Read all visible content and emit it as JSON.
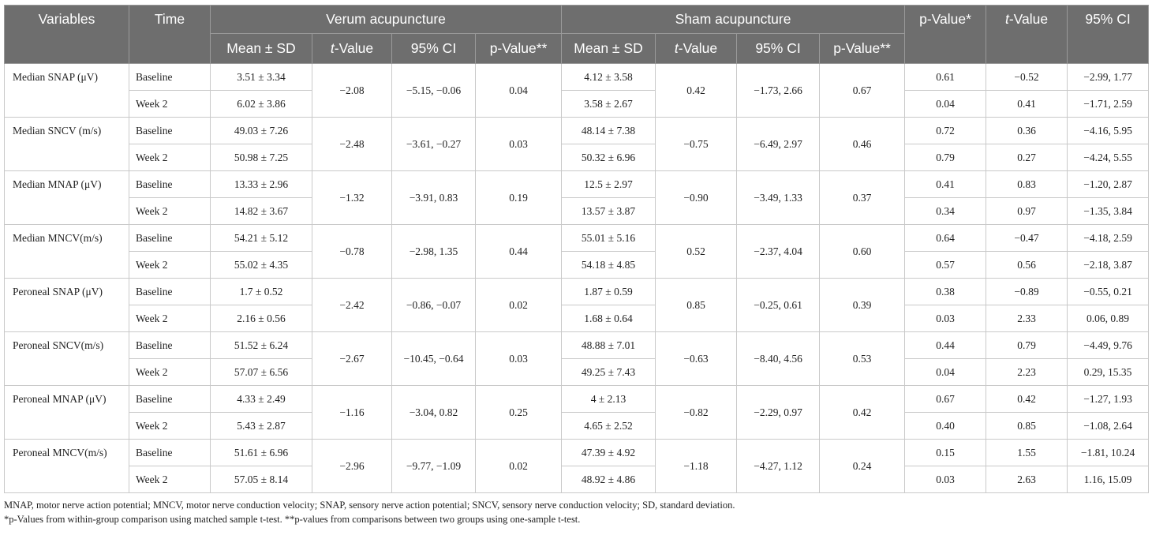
{
  "headers": {
    "variables": "Variables",
    "time": "Time",
    "verum": "Verum acupuncture",
    "sham": "Sham acupuncture",
    "p_star": "p-Value*",
    "t_value_prefix": "t",
    "t_value_suffix": "-Value",
    "ci": "95% CI",
    "mean_sd": "Mean ± SD",
    "p_2star": "p-Value**"
  },
  "rows": [
    {
      "variable": "Median SNAP (μV)",
      "baseline": {
        "time": "Baseline",
        "verum_mean": "3.51 ± 3.34",
        "sham_mean": "4.12 ± 3.58",
        "p": "0.61",
        "t": "−0.52",
        "ci": "−2.99, 1.77"
      },
      "week2": {
        "time": "Week 2",
        "verum_mean": "6.02 ± 3.86",
        "sham_mean": "3.58 ± 2.67",
        "p": "0.04",
        "t": "0.41",
        "ci": "−1.71, 2.59"
      },
      "verum_t": "−2.08",
      "verum_ci": "−5.15, −0.06",
      "verum_p": "0.04",
      "sham_t": "0.42",
      "sham_ci": "−1.73, 2.66",
      "sham_p": "0.67"
    },
    {
      "variable": "Median SNCV (m/s)",
      "baseline": {
        "time": "Baseline",
        "verum_mean": "49.03 ± 7.26",
        "sham_mean": "48.14 ± 7.38",
        "p": "0.72",
        "t": "0.36",
        "ci": "−4.16, 5.95"
      },
      "week2": {
        "time": "Week 2",
        "verum_mean": "50.98 ± 7.25",
        "sham_mean": "50.32 ± 6.96",
        "p": "0.79",
        "t": "0.27",
        "ci": "−4.24, 5.55"
      },
      "verum_t": "−2.48",
      "verum_ci": "−3.61, −0.27",
      "verum_p": "0.03",
      "sham_t": "−0.75",
      "sham_ci": "−6.49, 2.97",
      "sham_p": "0.46"
    },
    {
      "variable": "Median MNAP (μV)",
      "baseline": {
        "time": "Baseline",
        "verum_mean": "13.33 ± 2.96",
        "sham_mean": "12.5 ± 2.97",
        "p": "0.41",
        "t": "0.83",
        "ci": "−1.20, 2.87"
      },
      "week2": {
        "time": "Week 2",
        "verum_mean": "14.82 ± 3.67",
        "sham_mean": "13.57 ± 3.87",
        "p": "0.34",
        "t": "0.97",
        "ci": "−1.35, 3.84"
      },
      "verum_t": "−1.32",
      "verum_ci": "−3.91, 0.83",
      "verum_p": "0.19",
      "sham_t": "−0.90",
      "sham_ci": "−3.49, 1.33",
      "sham_p": "0.37"
    },
    {
      "variable": "Median MNCV(m/s)",
      "baseline": {
        "time": "Baseline",
        "verum_mean": "54.21 ± 5.12",
        "sham_mean": "55.01 ± 5.16",
        "p": "0.64",
        "t": "−0.47",
        "ci": "−4.18, 2.59"
      },
      "week2": {
        "time": "Week 2",
        "verum_mean": "55.02 ± 4.35",
        "sham_mean": "54.18 ± 4.85",
        "p": "0.57",
        "t": "0.56",
        "ci": "−2.18, 3.87"
      },
      "verum_t": "−0.78",
      "verum_ci": "−2.98, 1.35",
      "verum_p": "0.44",
      "sham_t": "0.52",
      "sham_ci": "−2.37, 4.04",
      "sham_p": "0.60"
    },
    {
      "variable": "Peroneal SNAP (μV)",
      "baseline": {
        "time": "Baseline",
        "verum_mean": "1.7 ± 0.52",
        "sham_mean": "1.87 ± 0.59",
        "p": "0.38",
        "t": "−0.89",
        "ci": "−0.55, 0.21"
      },
      "week2": {
        "time": "Week 2",
        "verum_mean": "2.16 ± 0.56",
        "sham_mean": "1.68 ± 0.64",
        "p": "0.03",
        "t": "2.33",
        "ci": "0.06, 0.89"
      },
      "verum_t": "−2.42",
      "verum_ci": "−0.86, −0.07",
      "verum_p": "0.02",
      "sham_t": "0.85",
      "sham_ci": "−0.25, 0.61",
      "sham_p": "0.39"
    },
    {
      "variable": "Peroneal SNCV(m/s)",
      "baseline": {
        "time": "Baseline",
        "verum_mean": "51.52 ± 6.24",
        "sham_mean": "48.88 ± 7.01",
        "p": "0.44",
        "t": "0.79",
        "ci": "−4.49, 9.76"
      },
      "week2": {
        "time": "Week 2",
        "verum_mean": "57.07 ± 6.56",
        "sham_mean": "49.25 ± 7.43",
        "p": "0.04",
        "t": "2.23",
        "ci": "0.29, 15.35"
      },
      "verum_t": "−2.67",
      "verum_ci": "−10.45, −0.64",
      "verum_p": "0.03",
      "sham_t": "−0.63",
      "sham_ci": "−8.40, 4.56",
      "sham_p": "0.53"
    },
    {
      "variable": "Peroneal MNAP (μV)",
      "baseline": {
        "time": "Baseline",
        "verum_mean": "4.33 ± 2.49",
        "sham_mean": "4 ± 2.13",
        "p": "0.67",
        "t": "0.42",
        "ci": "−1.27, 1.93"
      },
      "week2": {
        "time": "Week 2",
        "verum_mean": "5.43 ± 2.87",
        "sham_mean": "4.65 ± 2.52",
        "p": "0.40",
        "t": "0.85",
        "ci": "−1.08, 2.64"
      },
      "verum_t": "−1.16",
      "verum_ci": "−3.04, 0.82",
      "verum_p": "0.25",
      "sham_t": "−0.82",
      "sham_ci": "−2.29, 0.97",
      "sham_p": "0.42"
    },
    {
      "variable": "Peroneal MNCV(m/s)",
      "baseline": {
        "time": "Baseline",
        "verum_mean": "51.61 ± 6.96",
        "sham_mean": "47.39 ± 4.92",
        "p": "0.15",
        "t": "1.55",
        "ci": "−1.81, 10.24"
      },
      "week2": {
        "time": "Week 2",
        "verum_mean": "57.05 ± 8.14",
        "sham_mean": "48.92 ± 4.86",
        "p": "0.03",
        "t": "2.63",
        "ci": "1.16, 15.09"
      },
      "verum_t": "−2.96",
      "verum_ci": "−9.77, −1.09",
      "verum_p": "0.02",
      "sham_t": "−1.18",
      "sham_ci": "−4.27, 1.12",
      "sham_p": "0.24"
    }
  ],
  "footnotes": {
    "abbreviations": "MNAP, motor nerve action potential; MNCV, motor nerve conduction velocity; SNAP, sensory nerve action potential; SNCV, sensory nerve conduction velocity; SD, standard deviation.",
    "p_notes": "*p-Values from within-group comparison using matched sample t-test. **p-values from comparisons between two groups using one-sample t-test."
  },
  "colors": {
    "header_bg": "#6e6e6e",
    "header_text": "#ffffff",
    "border": "#c9c9c9"
  }
}
